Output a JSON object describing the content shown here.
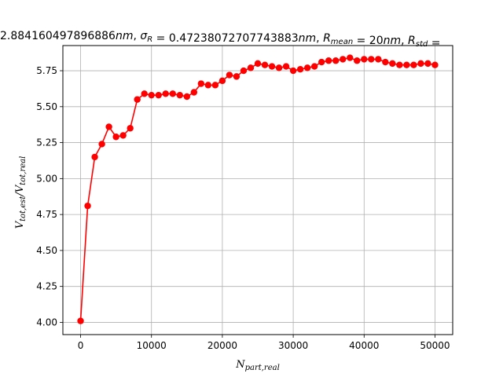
{
  "chart_data": {
    "type": "line",
    "title": "2.884160497896886nm, σ_R = 0.47238072707743883nm, R_mean = 20nm, R_std =",
    "xlabel": "N_part,real",
    "ylabel": "V_tot,est / V_tot,real",
    "xlim": [
      -2500,
      52500
    ],
    "ylim": [
      3.915,
      5.925
    ],
    "grid": true,
    "x_ticks": [
      0,
      10000,
      20000,
      30000,
      40000,
      50000
    ],
    "x_tick_labels": [
      "0",
      "10000",
      "20000",
      "30000",
      "40000",
      "50000"
    ],
    "y_ticks": [
      4.0,
      4.25,
      4.5,
      4.75,
      5.0,
      5.25,
      5.5,
      5.75
    ],
    "y_tick_labels": [
      "4.00",
      "4.25",
      "4.50",
      "4.75",
      "5.00",
      "5.25",
      "5.50",
      "5.75"
    ],
    "series": [
      {
        "color": "#ff0000",
        "marker": "circle",
        "x": [
          0,
          1000,
          2000,
          3000,
          4000,
          5000,
          6000,
          7000,
          8000,
          9000,
          10000,
          11000,
          12000,
          13000,
          14000,
          15000,
          16000,
          17000,
          18000,
          19000,
          20000,
          21000,
          22000,
          23000,
          24000,
          25000,
          26000,
          27000,
          28000,
          29000,
          30000,
          31000,
          32000,
          33000,
          34000,
          35000,
          36000,
          37000,
          38000,
          39000,
          40000,
          41000,
          42000,
          43000,
          44000,
          45000,
          46000,
          47000,
          48000,
          49000,
          50000
        ],
        "y": [
          4.01,
          4.81,
          5.15,
          5.24,
          5.36,
          5.29,
          5.3,
          5.35,
          5.55,
          5.59,
          5.58,
          5.58,
          5.59,
          5.59,
          5.58,
          5.57,
          5.6,
          5.66,
          5.65,
          5.65,
          5.68,
          5.72,
          5.71,
          5.75,
          5.77,
          5.8,
          5.79,
          5.78,
          5.77,
          5.78,
          5.75,
          5.76,
          5.77,
          5.78,
          5.81,
          5.82,
          5.82,
          5.83,
          5.84,
          5.82,
          5.83,
          5.83,
          5.83,
          5.81,
          5.8,
          5.79,
          5.79,
          5.79,
          5.8,
          5.8,
          5.79
        ]
      }
    ]
  }
}
